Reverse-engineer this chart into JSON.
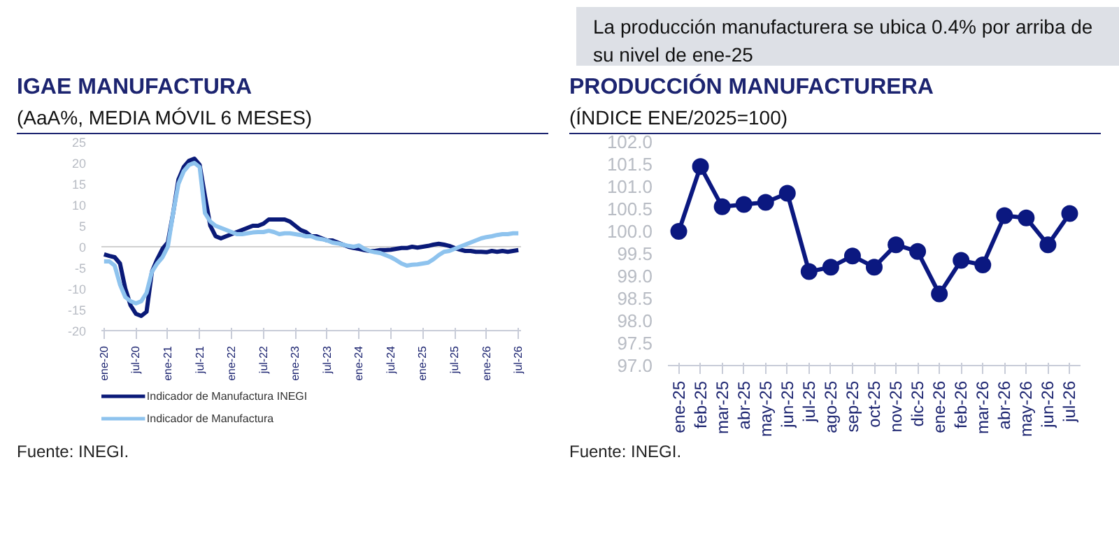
{
  "chart_data": [
    {
      "type": "line",
      "title": "IGAE MANUFACTURA",
      "subtitle": "(AaA%, MEDIA MÓVIL 6 MESES)",
      "annotations": [
        "Fuente: INEGI."
      ],
      "categories": [
        "ene-20",
        null,
        null,
        null,
        null,
        null,
        "jul-20",
        null,
        null,
        null,
        null,
        null,
        "ene-21",
        null,
        null,
        null,
        null,
        null,
        "jul-21",
        null,
        null,
        null,
        null,
        null,
        "ene-22",
        null,
        null,
        null,
        null,
        null,
        "jul-22",
        null,
        null,
        null,
        null,
        null,
        "ene-23",
        null,
        null,
        null,
        null,
        null,
        "jul-23",
        null,
        null,
        null,
        null,
        null,
        "ene-24",
        null,
        null,
        null,
        null,
        null,
        "jul-24",
        null,
        null,
        null,
        null,
        null,
        "ene-25",
        null,
        null,
        null,
        null,
        null,
        "jul-25",
        null,
        null,
        null,
        null,
        null,
        "ene-26",
        null,
        null,
        null,
        null,
        null,
        "jul-26"
      ],
      "series": [
        {
          "name": "Indicador de Manufactura INEGI",
          "color": "#0a1a78",
          "values": [
            -1.8,
            -2.2,
            -2.5,
            -4,
            -10,
            -14,
            -16,
            -16.5,
            -15.5,
            -6,
            -3,
            -0.5,
            1,
            8,
            16,
            19,
            20.5,
            21,
            19.5,
            12,
            5,
            2.5,
            2,
            2.5,
            3,
            3.5,
            4,
            4.5,
            5,
            5,
            5.5,
            6.5,
            6.5,
            6.5,
            6.5,
            6,
            5,
            4,
            3.5,
            2.5,
            2.5,
            2,
            1.5,
            1.5,
            1,
            0.5,
            0,
            -0.3,
            -0.5,
            -0.8,
            -1,
            -1,
            -0.8,
            -0.8,
            -0.7,
            -0.5,
            -0.3,
            -0.3,
            0,
            -0.2,
            0,
            0.2,
            0.5,
            0.7,
            0.5,
            0.2,
            -0.3,
            -0.7,
            -1,
            -1,
            -1.2,
            -1.2,
            -1.3,
            -1,
            -1.2,
            -1,
            -1.2,
            -1,
            -0.8
          ]
        },
        {
          "name": "Indicador de Manufactura",
          "color": "#8ec3ee",
          "values": [
            -3.5,
            -3.5,
            -4.5,
            -9,
            -12,
            -13,
            -13.5,
            -13,
            -11,
            -6,
            -4,
            -2.5,
            0,
            8,
            15,
            18,
            19.5,
            20,
            19,
            8,
            6,
            5,
            4.5,
            4,
            3.5,
            3,
            3,
            3.2,
            3.4,
            3.5,
            3.5,
            3.8,
            3.5,
            3,
            3.2,
            3.2,
            3,
            2.8,
            2.5,
            2.5,
            2,
            1.8,
            1.5,
            1,
            0.8,
            0.5,
            0.2,
            0,
            0.3,
            -0.5,
            -1,
            -1.3,
            -1.5,
            -2,
            -2.5,
            -3.2,
            -4,
            -4.5,
            -4.3,
            -4.2,
            -4,
            -3.8,
            -3,
            -2,
            -1.2,
            -1,
            -0.5,
            0,
            0.5,
            1,
            1.5,
            2,
            2.3,
            2.5,
            2.8,
            3,
            3,
            3.2,
            3.2
          ]
        }
      ],
      "ylim": [
        -20,
        25
      ],
      "yticks": [
        -20,
        -15,
        -10,
        -5,
        0,
        5,
        10,
        15,
        20,
        25
      ],
      "ref_lines": [
        {
          "axis": "y",
          "value": 0,
          "color": "#d0d0d0"
        }
      ],
      "grid": false,
      "legend": "bottom",
      "line_style": "solid",
      "marker": "none"
    },
    {
      "type": "line",
      "title": "PRODUCCIÓN MANUFACTURERA",
      "subtitle": "(ÍNDICE ENE/2025=100)",
      "annotations": [
        "La producción manufacturera se ubica 0.4% por arriba de su nivel de ene-25",
        "Fuente: INEGI."
      ],
      "categories": [
        "ene-25",
        "feb-25",
        "mar-25",
        "abr-25",
        "may-25",
        "jun-25",
        "jul-25",
        "ago-25",
        "sep-25",
        "oct-25",
        "nov-25",
        "dic-25",
        "ene-26",
        "feb-26",
        "mar-26",
        "abr-26",
        "may-26",
        "jun-26",
        "jul-26"
      ],
      "series": [
        {
          "color": "#0b1880",
          "values": [
            100.0,
            101.45,
            100.55,
            100.6,
            100.65,
            100.85,
            99.1,
            99.2,
            99.45,
            99.2,
            99.7,
            99.55,
            98.6,
            99.35,
            99.25,
            100.35,
            100.3,
            99.7,
            100.4
          ]
        }
      ],
      "ylim": [
        97,
        102
      ],
      "yticks": [
        {
          "value": 97,
          "label": "97.0"
        },
        {
          "value": 97.5,
          "label": "97.5"
        },
        {
          "value": 98,
          "label": "98.0"
        },
        {
          "value": 98.5,
          "label": "98.5"
        },
        {
          "value": 99,
          "label": "99.0"
        },
        {
          "value": 99.5,
          "label": "99.5"
        },
        {
          "value": 100,
          "label": "100.0"
        },
        {
          "value": 100.5,
          "label": "100.5"
        },
        {
          "value": 101,
          "label": "101.0"
        },
        {
          "value": 101.5,
          "label": "101.5"
        },
        {
          "value": 102,
          "label": "102.0"
        }
      ],
      "grid": false,
      "legend": false,
      "line_style": "solid",
      "marker": "circle"
    }
  ]
}
